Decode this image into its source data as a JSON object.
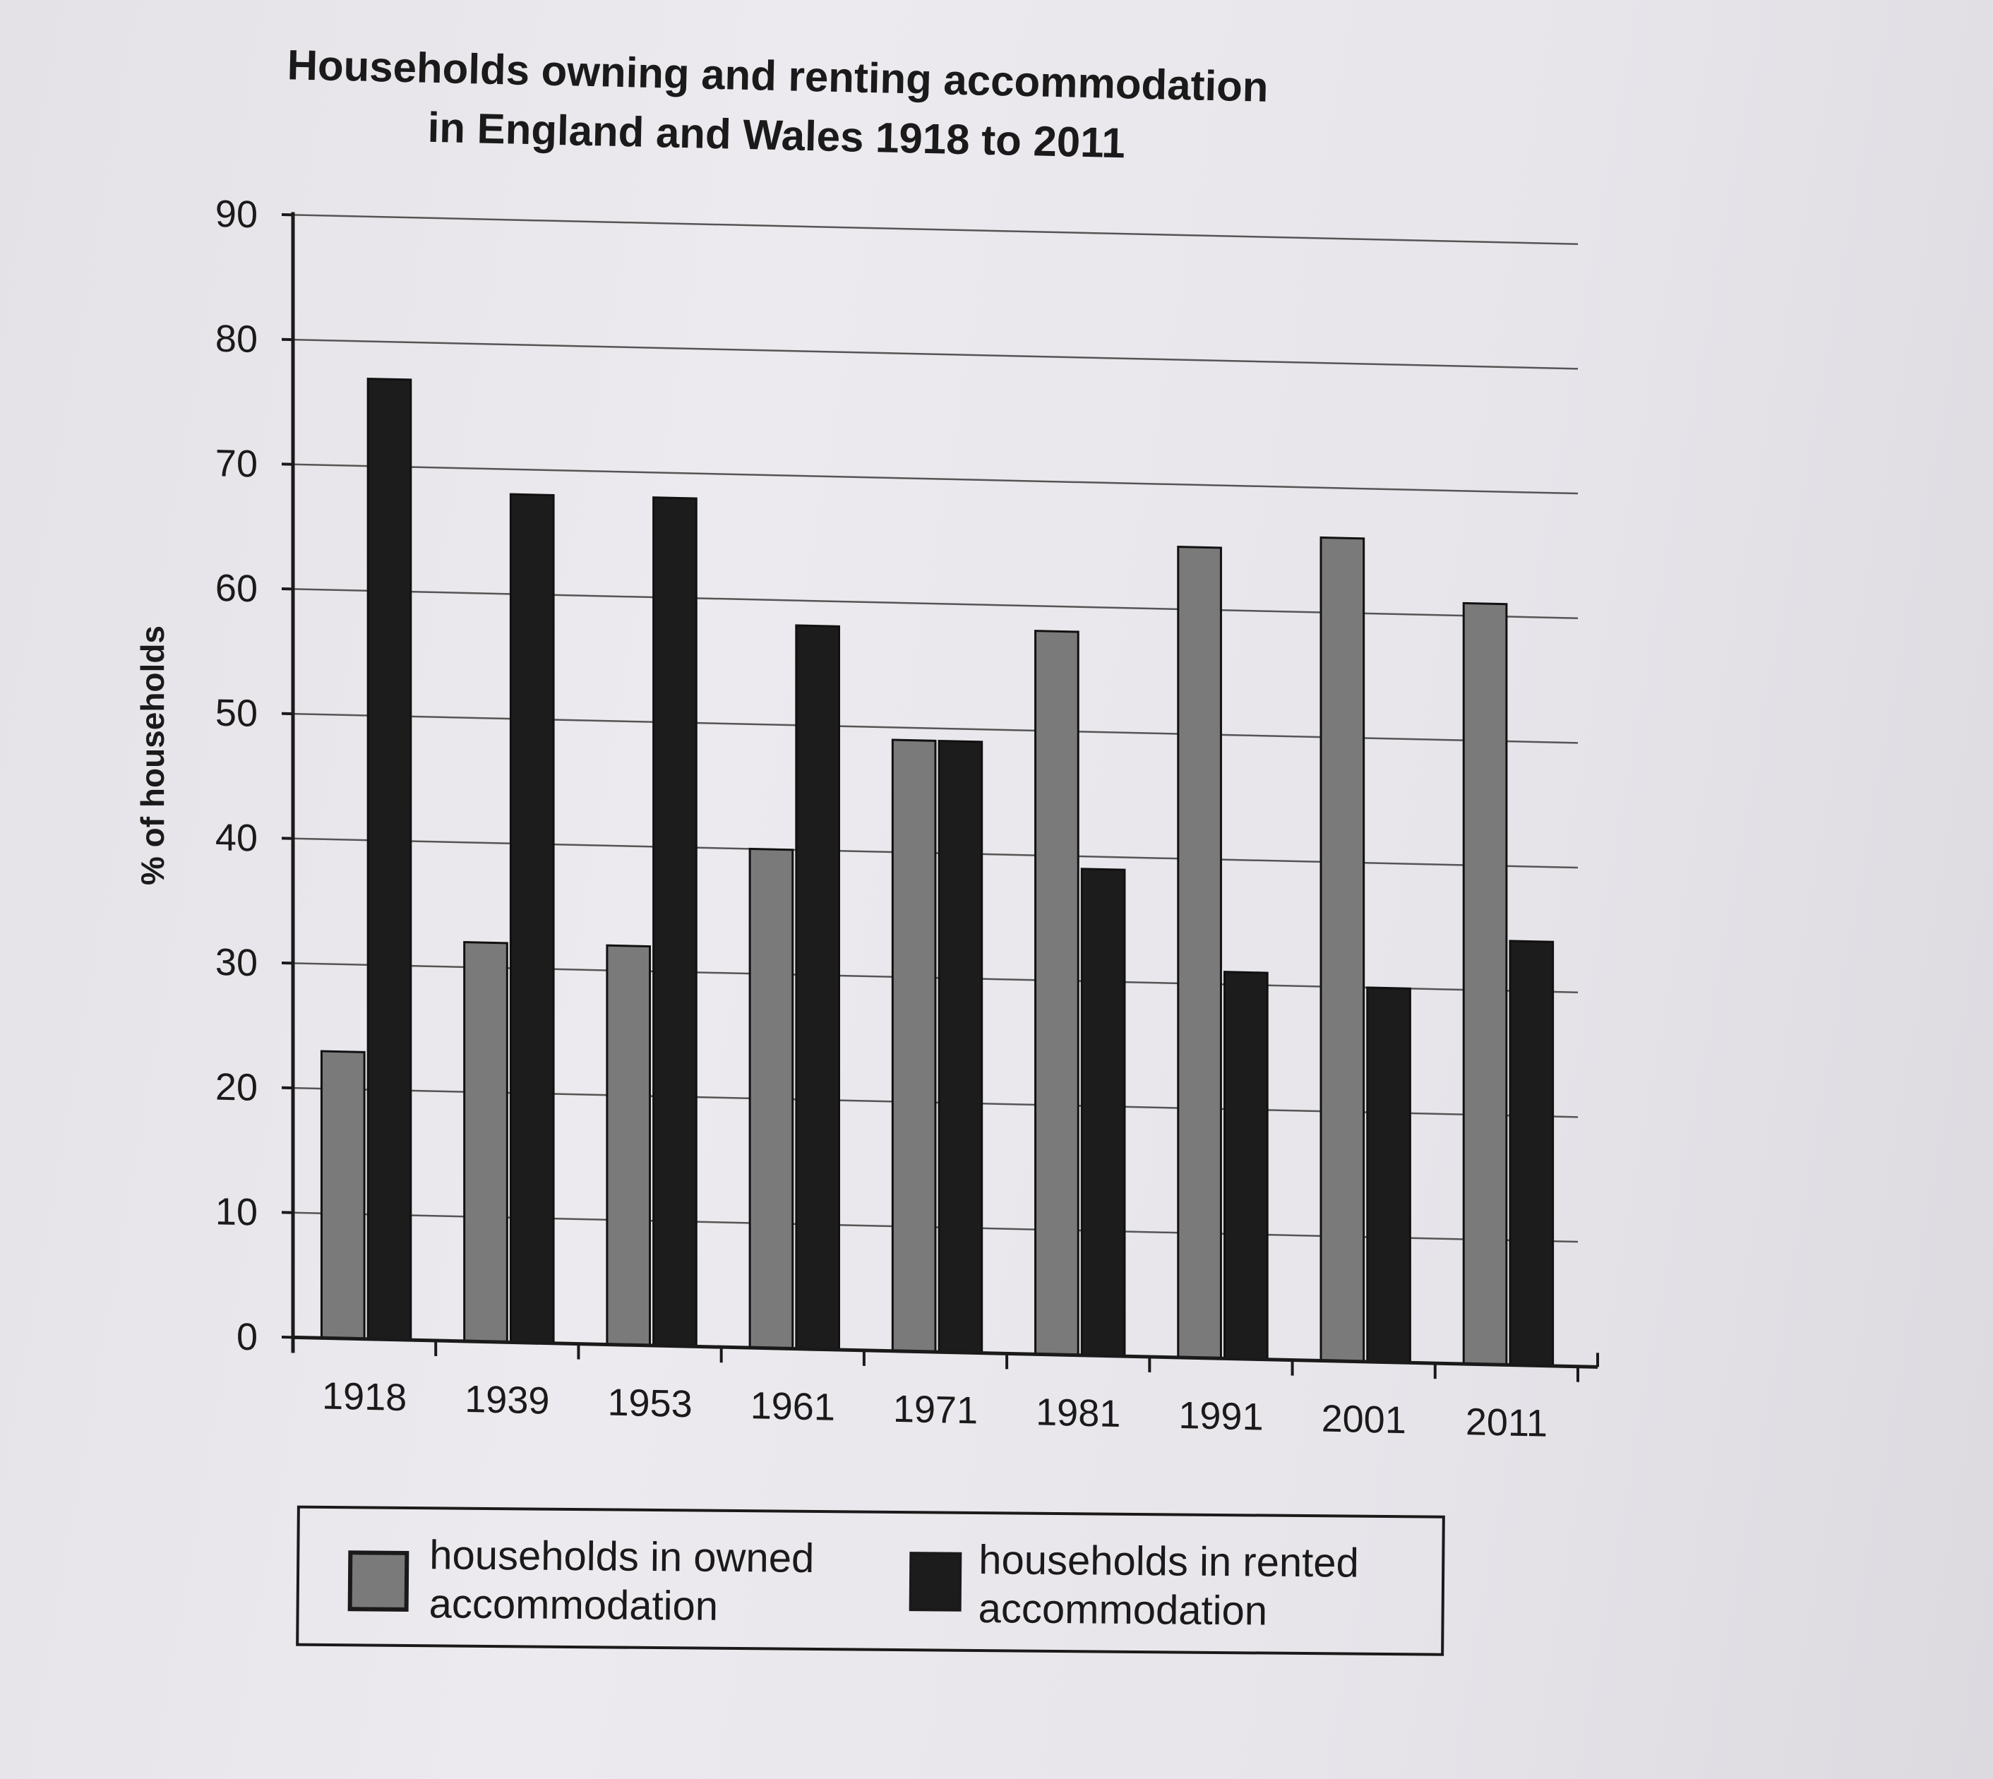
{
  "chart_data": {
    "type": "bar",
    "title_line1": "Households owning and renting accommodation",
    "title_line2": "in England and Wales 1918 to 2011",
    "xlabel": "",
    "ylabel": "% of households",
    "ylim": [
      0,
      90
    ],
    "yticks": [
      "0",
      "10",
      "20",
      "30",
      "40",
      "50",
      "60",
      "70",
      "80",
      "90"
    ],
    "grid": true,
    "legend_position": "bottom",
    "categories": [
      "1918",
      "1939",
      "1953",
      "1961",
      "1971",
      "1981",
      "1991",
      "2001",
      "2011"
    ],
    "series": [
      {
        "name_line1": "households in owned",
        "name_line2": "accommodation",
        "color": "#7a7a7a",
        "values": [
          23,
          32,
          32,
          40,
          49,
          58,
          65,
          66,
          61
        ]
      },
      {
        "name_line1": "households in rented",
        "name_line2": "accommodation",
        "color": "#1c1c1c",
        "values": [
          77,
          68,
          68,
          58,
          49,
          39,
          31,
          30,
          34
        ]
      }
    ]
  }
}
